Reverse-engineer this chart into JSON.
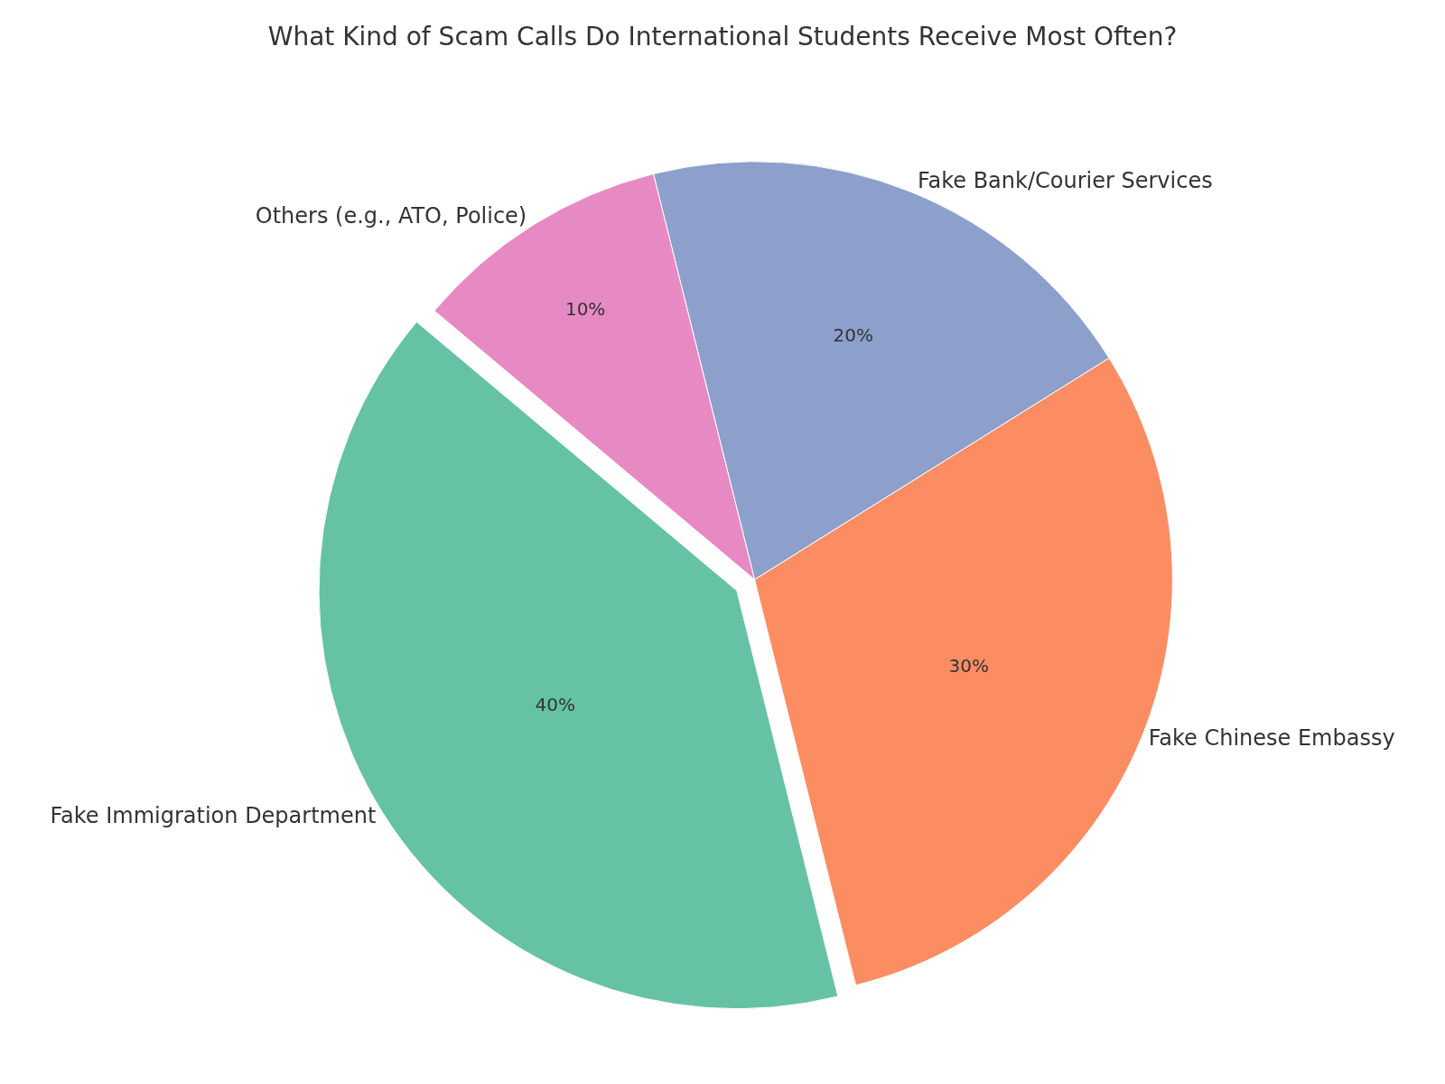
{
  "chart_data": {
    "type": "pie",
    "title": "What Kind of Scam Calls Do International Students Receive Most Often?",
    "categories": [
      "Fake Immigration Department",
      "Fake Chinese Embassy",
      "Fake Bank/Courier Services",
      "Others (e.g., ATO, Police)"
    ],
    "values": [
      40,
      30,
      20,
      10
    ],
    "colors": [
      "#66c2a5",
      "#fc8d62",
      "#8da0cb",
      "#e78ac3"
    ],
    "value_labels": [
      "40%",
      "30%",
      "20%",
      "10%"
    ],
    "legend": false
  }
}
